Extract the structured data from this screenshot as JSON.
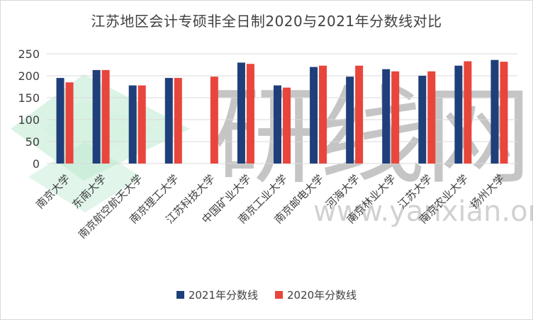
{
  "chart_data": {
    "type": "bar",
    "title": "江苏地区会计专硕非全日制2020与2021年分数线对比",
    "categories": [
      "南京大学",
      "东南大学",
      "南京航空航天大学",
      "南京理工大学",
      "江苏科技大学",
      "中国矿业大学",
      "南京工业大学",
      "南京邮电大学",
      "河海大学",
      "南京林业大学",
      "江苏大学",
      "南京农业大学",
      "扬州大学"
    ],
    "series": [
      {
        "name": "2021年分数线",
        "color": "#1f3f7a",
        "values": [
          195,
          213,
          178,
          195,
          null,
          230,
          178,
          220,
          198,
          215,
          200,
          223,
          236
        ]
      },
      {
        "name": "2020年分数线",
        "color": "#e8453c",
        "values": [
          185,
          213,
          178,
          195,
          198,
          227,
          173,
          223,
          223,
          210,
          210,
          233,
          232
        ]
      }
    ],
    "yticks": [
      "0",
      "50",
      "100",
      "150",
      "200",
      "250"
    ],
    "ylim": [
      0,
      250
    ],
    "grid": true,
    "legend_position": "bottom"
  },
  "watermark": {
    "text": "研线网",
    "url": "www.yanxian.org"
  }
}
